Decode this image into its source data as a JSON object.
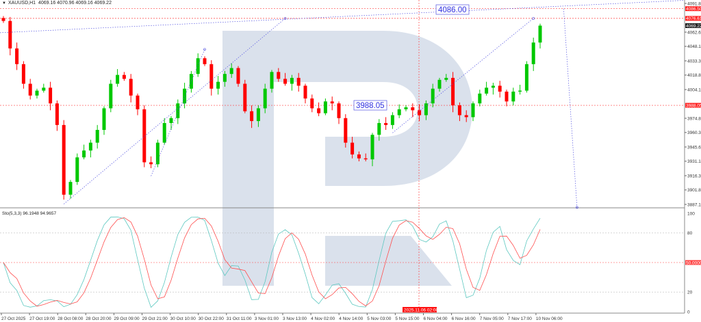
{
  "header": {
    "symbol": "XAUUSD,H1",
    "ohlc": "4069.16 4070.96 4069.16 4069.22"
  },
  "stochastic": {
    "label": "Sto(5,3,3) 96.1948 94.9657",
    "levels": [
      80,
      50,
      20
    ],
    "highlight_level_label": "50.0000",
    "axis_ticks": [
      "100",
      "80",
      "20",
      "0"
    ]
  },
  "colors": {
    "bull": "#00c800",
    "bear": "#ff0000",
    "stoch_main": "#5cc8c0",
    "stoch_signal": "#ff4d4d",
    "trendline": "#5050e0",
    "level_line": "#ff4040",
    "watermark": "#d4dce9"
  },
  "annotations": {
    "upper_box": "4086.00",
    "lower_box": "3988.05"
  },
  "crosshair_time_label": "2025.11.06 02:00",
  "chart_data": {
    "type": "candlestick",
    "symbol": "XAUUSD",
    "timeframe": "H1",
    "ylim": [
      3887.1,
      4091.85
    ],
    "price_ticks": [
      "4091.85",
      "4062.60",
      "4048.10",
      "4033.35",
      "4018.85",
      "4004.10",
      "3974.85",
      "3960.35",
      "3945.60",
      "3931.10",
      "3916.35",
      "3901.85",
      "3887.10"
    ],
    "price_tick_values": [
      4091.85,
      4062.6,
      4048.1,
      4033.35,
      4018.85,
      4004.1,
      3974.85,
      3960.35,
      3945.6,
      3931.1,
      3916.35,
      3901.85,
      3887.1
    ],
    "marked_levels": [
      {
        "label": "4086.50",
        "value": 4086.5,
        "color": "#ff2020"
      },
      {
        "label": "4076.61",
        "value": 4076.61,
        "color": "#ff2020"
      },
      {
        "label": "4069.22",
        "value": 4069.22,
        "color": "#222222"
      },
      {
        "label": "3988.05",
        "value": 3988.05,
        "color": "#ff2020"
      }
    ],
    "time_labels": [
      "27 Oct 2025",
      "27 Oct 19:00",
      "28 Oct 08:00",
      "28 Oct 20:00",
      "29 Oct 09:00",
      "29 Oct 21:00",
      "30 Oct 10:00",
      "30 Oct 22:00",
      "31 Oct 11:00",
      "3 Nov 01:00",
      "3 Nov 13:00",
      "4 Nov 02:00",
      "4 Nov 14:00",
      "5 Nov 03:00",
      "5 Nov 15:00",
      "6 Nov 04:00",
      "6 Nov 16:00",
      "7 Nov 05:00",
      "7 Nov 17:00",
      "10 Nov 06:00"
    ],
    "closes": [
      4074,
      4046,
      4030,
      4010,
      3998,
      4003,
      4006,
      3990,
      3968,
      3897,
      3910,
      3935,
      3942,
      3950,
      3963,
      3985,
      4010,
      4019,
      4015,
      3998,
      3984,
      3930,
      3928,
      3950,
      3970,
      3975,
      3990,
      4005,
      4020,
      4036,
      4030,
      4005,
      4012,
      4020,
      4026,
      4010,
      3982,
      3972,
      3985,
      4005,
      4022,
      4015,
      4010,
      4016,
      4008,
      3995,
      3985,
      3980,
      3992,
      3990,
      3975,
      3950,
      3938,
      3934,
      3933,
      3958,
      3970,
      3968,
      3978,
      3984,
      3986,
      3983,
      3978,
      3990,
      4005,
      4014,
      4016,
      3988,
      3978,
      3976,
      3990,
      4000,
      4006,
      4008,
      4002,
      3992,
      4002,
      4003,
      4030,
      4052,
      4069.22
    ],
    "trendlines": [
      {
        "from": [
          0,
          4062.0
        ],
        "to": [
          1.0,
          4095.0
        ]
      },
      {
        "from": [
          9,
          3887.5
        ],
        "to": [
          42,
          4076.6
        ]
      },
      {
        "from": [
          22,
          3916.0
        ],
        "to": [
          30,
          4045.0
        ]
      },
      {
        "from": [
          58,
          3960.0
        ],
        "to": [
          79,
          4076.6
        ]
      },
      {
        "from": [
          83.5,
          4086.5
        ],
        "to": [
          85.5,
          3884.0
        ]
      }
    ]
  }
}
